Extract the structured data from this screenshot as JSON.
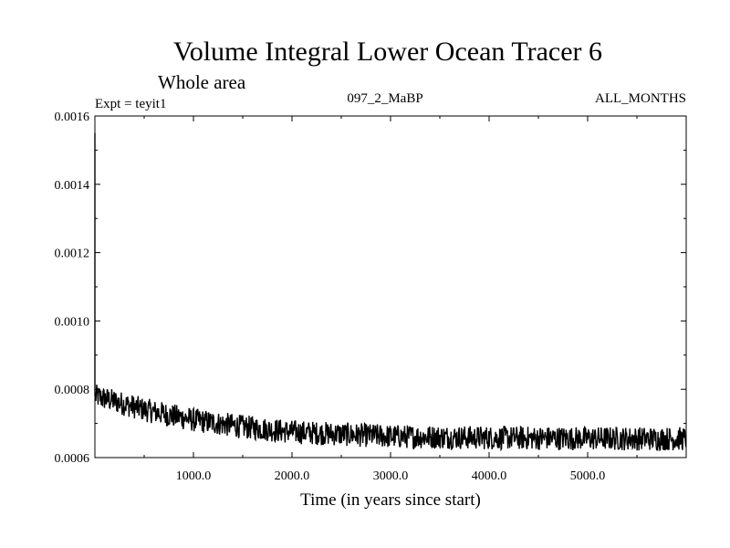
{
  "chart_data": {
    "type": "line",
    "title": "Volume Integral Lower Ocean Tracer 6",
    "subtitle": "Whole area",
    "left_annotation": "Expt = teyit1",
    "center_annotation": "097_2_MaBP",
    "right_annotation": "ALL_MONTHS",
    "xlabel": "Time (in years since start)",
    "ylabel": "",
    "xlim": [
      0,
      6000
    ],
    "ylim": [
      0.0006,
      0.0016
    ],
    "xticks": [
      1000,
      2000,
      3000,
      4000,
      5000
    ],
    "xtick_labels": [
      "1000.0",
      "2000.0",
      "3000.0",
      "4000.0",
      "5000.0"
    ],
    "yticks": [
      0.0006,
      0.0008,
      0.001,
      0.0012,
      0.0014,
      0.0016
    ],
    "ytick_labels": [
      "0.0006",
      "0.0008",
      "0.0010",
      "0.0012",
      "0.0014",
      "0.0016"
    ],
    "series": [
      {
        "name": "Lower Ocean Tracer 6",
        "color": "#000000",
        "initial_value": 0.00155,
        "envelope_x": [
          0,
          200,
          500,
          1000,
          1500,
          2000,
          3000,
          4000,
          5000,
          6000
        ],
        "envelope_mean": [
          0.00078,
          0.000765,
          0.00074,
          0.00071,
          0.00069,
          0.000675,
          0.000662,
          0.000658,
          0.000656,
          0.000655
        ],
        "noise_amplitude": 3.5e-05
      }
    ]
  }
}
